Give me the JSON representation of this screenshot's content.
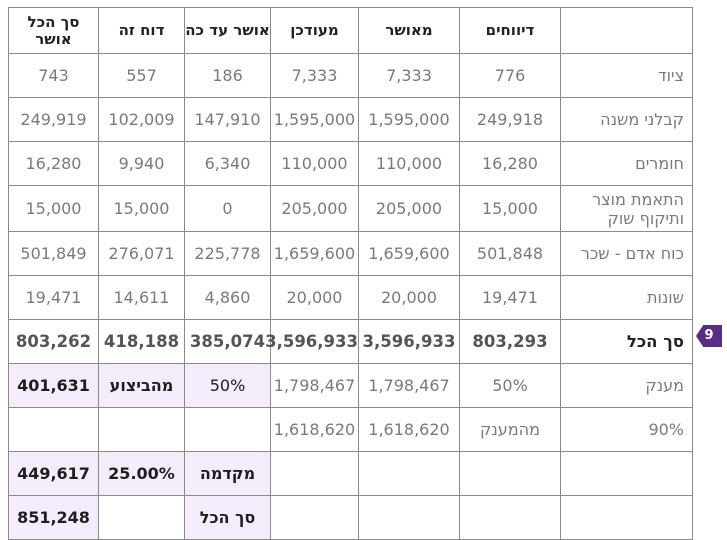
{
  "headers": [
    "דיווחים",
    "מאושר",
    "מעודכן",
    "אושר עד כה",
    "דוח זה",
    "סך הכל אושר"
  ],
  "rows": [
    {
      "label": "ציוד",
      "values": [
        "776",
        "7,333",
        "7,333",
        "186",
        "557",
        "743"
      ]
    },
    {
      "label": "קבלני משנה",
      "values": [
        "249,918",
        "1,595,000",
        "1,595,000",
        "147,910",
        "102,009",
        "249,919"
      ]
    },
    {
      "label": "חומרים",
      "values": [
        "16,280",
        "110,000",
        "110,000",
        "6,340",
        "9,940",
        "16,280"
      ]
    },
    {
      "label": "התאמת מוצר ותיקוף שוק",
      "values": [
        "15,000",
        "205,000",
        "205,000",
        "0",
        "15,000",
        "15,000"
      ]
    },
    {
      "label": "כוח אדם - שכר",
      "values": [
        "501,848",
        "1,659,600",
        "1,659,600",
        "225,778",
        "276,071",
        "501,849"
      ]
    },
    {
      "label": "שונות",
      "values": [
        "19,471",
        "20,000",
        "20,000",
        "4,860",
        "14,611",
        "19,471"
      ]
    }
  ],
  "total": {
    "label": "סך הכל",
    "values": [
      "803,293",
      "3,596,933",
      "3,596,933",
      "385,074",
      "418,188",
      "803,262"
    ]
  },
  "grant": {
    "label": "מענק",
    "percent": "50%",
    "approved": "1,798,467",
    "updated": "1,798,467",
    "rate": "50%",
    "from_exec": "מהביצוע",
    "amount": "401,631"
  },
  "ninety": {
    "label": "90%",
    "from_grant": "מהמענק",
    "approved": "1,618,620",
    "updated": "1,618,620"
  },
  "advance": {
    "label": "מקדמה",
    "rate": "25.00%",
    "amount": "449,617"
  },
  "sum": {
    "label": "סך הכל",
    "amount": "851,248"
  },
  "badge": "9"
}
